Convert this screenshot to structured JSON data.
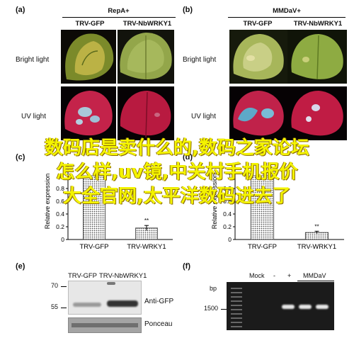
{
  "panels": {
    "a": {
      "letter": "(a)",
      "group": "RepA+",
      "cols": [
        "TRV-GFP",
        "TRV-NbWRKY1"
      ]
    },
    "b": {
      "letter": "(b)",
      "group": "MMDaV+",
      "cols": [
        "TRV-GFP",
        "TRV-NbWRKY1"
      ]
    },
    "rows": {
      "bright": "Bright light",
      "uv": "UV light"
    },
    "c": {
      "letter": "(c)"
    },
    "d": {
      "letter": "(d)"
    },
    "e": {
      "letter": "(e)",
      "lanes": [
        "TRV-GFP",
        "TRV-NbWRKY1"
      ],
      "markers": [
        "70",
        "55"
      ],
      "anti": "Anti-GFP",
      "ponceau": "Ponceau"
    },
    "f": {
      "letter": "(f)",
      "bp": "bp",
      "marker": "1500",
      "lanes": [
        "Mock",
        "-",
        "+",
        "MMDaV"
      ]
    }
  },
  "overlay": {
    "line1": "数码店是卖什么的,数码之家论坛",
    "line2": "怎么样,uv镜,中关村手机报价",
    "line3": "大全官网,太平洋数码进去了"
  },
  "chart_data": [
    {
      "type": "bar",
      "panel": "c",
      "categories": [
        "TRV-GFP",
        "TRV-WRKY1"
      ],
      "values": [
        1.0,
        0.18
      ],
      "errors": [
        0.0,
        0.04
      ],
      "annotations": [
        "",
        "**"
      ],
      "ylabel": "Relative expression",
      "ylim": [
        0,
        1.2
      ],
      "yticks": [
        "0",
        "0.2",
        "0.4",
        "0.6",
        "0.8",
        "1"
      ]
    },
    {
      "type": "bar",
      "panel": "d",
      "categories": [
        "TRV-GFP",
        "TRV-WRKY1"
      ],
      "values": [
        1.0,
        0.11
      ],
      "errors": [
        0.0,
        0.02
      ],
      "annotations": [
        "",
        "**"
      ],
      "ylabel": "Relative expression",
      "ylim": [
        0,
        1.2
      ],
      "yticks": [
        "0",
        "0.2",
        "0.4",
        "0.6",
        "0.8",
        "1"
      ]
    }
  ]
}
